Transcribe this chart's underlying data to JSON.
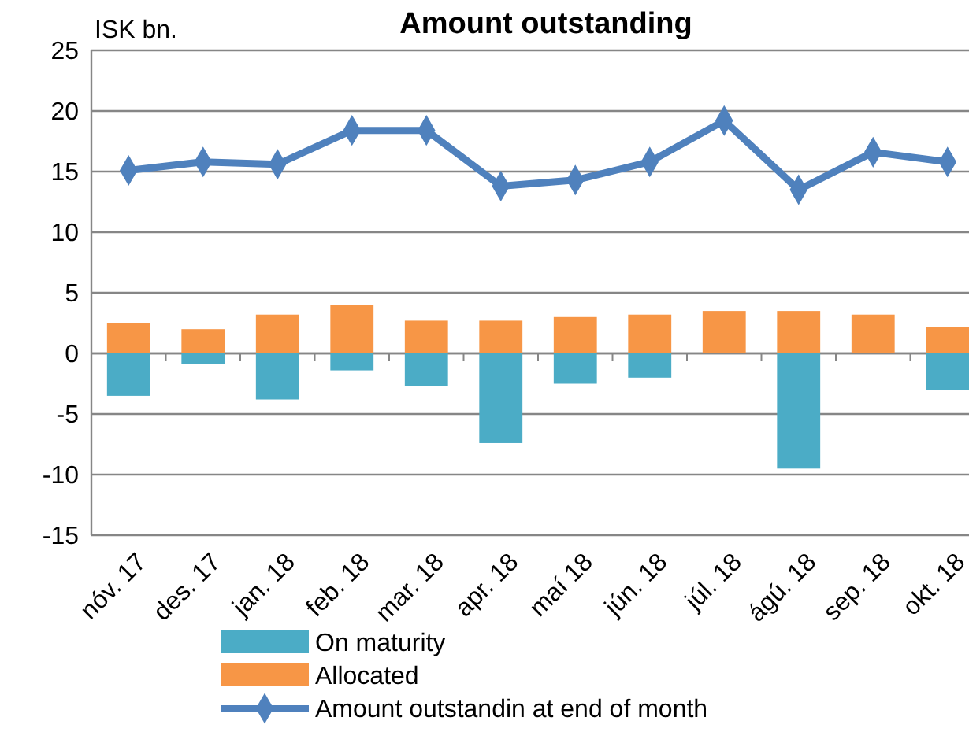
{
  "chart_data": {
    "type": "bar",
    "title": "Amount outstanding",
    "ylabel": "ISK bn.",
    "categories": [
      "nóv. 17",
      "des. 17",
      "jan. 18",
      "feb. 18",
      "mar. 18",
      "apr. 18",
      "maí 18",
      "jún. 18",
      "júl. 18",
      "ágú. 18",
      "sep. 18",
      "okt. 18"
    ],
    "series": [
      {
        "name": "On maturity",
        "color": "#4bacc6",
        "values": [
          -3.5,
          -0.9,
          -3.8,
          -1.4,
          -2.7,
          -7.4,
          -2.5,
          -2.0,
          null,
          -9.5,
          null,
          -3.0
        ]
      },
      {
        "name": "Allocated",
        "color": "#f79646",
        "values": [
          2.5,
          2.0,
          3.2,
          4.0,
          2.7,
          2.7,
          3.0,
          3.2,
          3.5,
          3.5,
          3.2,
          2.2
        ]
      },
      {
        "name": "Amount outstandin at end of month",
        "type": "line",
        "color": "#4f81bd",
        "marker": "diamond",
        "values": [
          15.1,
          15.8,
          15.6,
          18.4,
          18.4,
          13.8,
          14.3,
          15.8,
          19.2,
          13.5,
          16.6,
          15.8
        ]
      }
    ],
    "stacked": true,
    "ylim": [
      -15,
      25
    ],
    "yticks": [
      -15,
      -10,
      -5,
      0,
      5,
      10,
      15,
      20,
      25
    ],
    "grid": "y",
    "legend": "bottom"
  }
}
